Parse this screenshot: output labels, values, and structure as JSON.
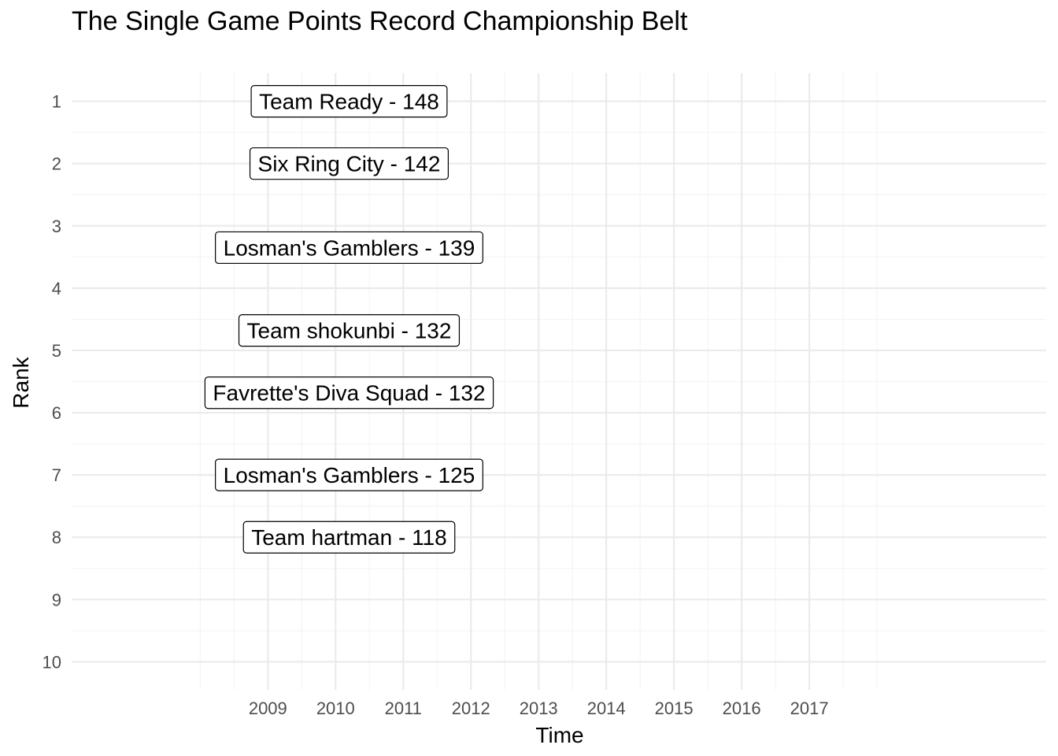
{
  "chart_data": {
    "type": "scatter",
    "title": "The Single Game Points Record Championship Belt",
    "xlabel": "Time",
    "ylabel": "Rank",
    "x_ticks": [
      "2009",
      "2010",
      "2011",
      "2012",
      "2013",
      "2014",
      "2015",
      "2016",
      "2017"
    ],
    "y_ticks": [
      "1",
      "2",
      "3",
      "4",
      "5",
      "6",
      "7",
      "8",
      "9",
      "10"
    ],
    "xlim": [
      2006.1,
      2020.5
    ],
    "ylim": [
      10.45,
      0.55
    ],
    "y_reversed": true,
    "grid": true,
    "points": [
      {
        "label": "Team Ready - 148",
        "x": 2010.2,
        "y": 1
      },
      {
        "label": "Six Ring City - 142",
        "x": 2010.2,
        "y": 2
      },
      {
        "label": "Losman's Gamblers - 139",
        "x": 2010.2,
        "y": 3.35
      },
      {
        "label": "Team shokunbi - 132",
        "x": 2010.2,
        "y": 4.68
      },
      {
        "label": "Favrette's Diva Squad - 132",
        "x": 2010.2,
        "y": 5.68
      },
      {
        "label": "Losman's Gamblers - 125",
        "x": 2010.2,
        "y": 7
      },
      {
        "label": "Team hartman - 118",
        "x": 2010.2,
        "y": 8
      }
    ]
  }
}
